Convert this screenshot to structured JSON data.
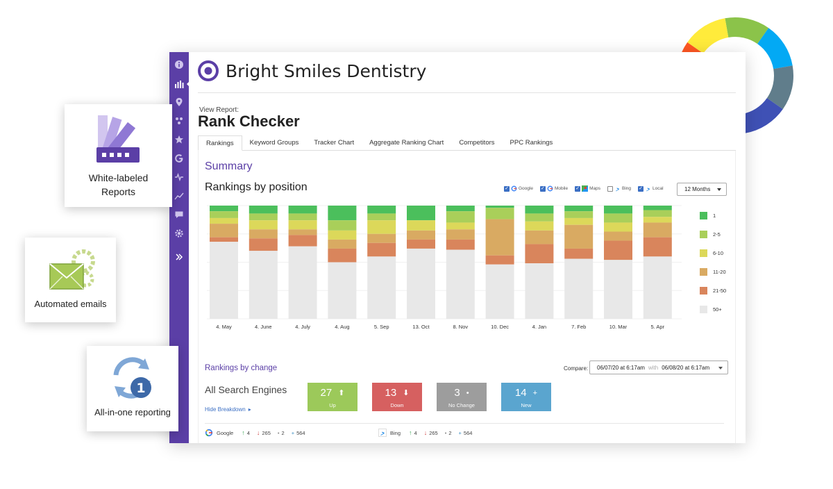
{
  "brand": {
    "name": "Bright Smiles Dentistry"
  },
  "report": {
    "view_label": "View Report:",
    "title": "Rank Checker"
  },
  "tabs": [
    {
      "label": "Rankings",
      "active": true
    },
    {
      "label": "Keyword Groups"
    },
    {
      "label": "Tracker Chart"
    },
    {
      "label": "Aggregate Ranking Chart"
    },
    {
      "label": "Competitors"
    },
    {
      "label": "PPC Rankings"
    }
  ],
  "summary": {
    "title": "Summary",
    "chart_title": "Rankings by position",
    "period": "12 Months",
    "engines": [
      {
        "label": "Google",
        "checked": true,
        "icon": "google-icon"
      },
      {
        "label": "Mobile",
        "checked": true,
        "icon": "google-icon"
      },
      {
        "label": "Maps",
        "checked": true,
        "icon": "maps-icon"
      },
      {
        "label": "Bing",
        "checked": false,
        "icon": "bing-icon"
      },
      {
        "label": "Local",
        "checked": true,
        "icon": "bing-icon"
      }
    ]
  },
  "chart_data": {
    "type": "bar",
    "stacked": true,
    "title": "Rankings by position",
    "categories": [
      "4. May",
      "4. June",
      "4. July",
      "4. Aug",
      "5. Sep",
      "13. Oct",
      "8. Nov",
      "10. Dec",
      "4. Jan",
      "7. Feb",
      "10. Mar",
      "5. Apr"
    ],
    "ylim": [
      0,
      100
    ],
    "series": [
      {
        "name": "1",
        "color": "#4bbf5c",
        "values": [
          5,
          7,
          7,
          13,
          7,
          13,
          5,
          2,
          7,
          5,
          7,
          4
        ]
      },
      {
        "name": "2-5",
        "color": "#a9cf5a",
        "values": [
          6,
          6,
          6,
          9,
          6,
          0,
          10,
          10,
          7,
          6,
          8,
          6
        ]
      },
      {
        "name": "6-10",
        "color": "#dcd85a",
        "values": [
          5,
          8,
          8,
          8,
          12,
          9,
          6,
          0,
          8,
          6,
          8,
          5
        ]
      },
      {
        "name": "11-20",
        "color": "#d9aa62",
        "values": [
          12,
          8,
          5,
          8,
          8,
          8,
          9,
          32,
          12,
          21,
          8,
          13
        ]
      },
      {
        "name": "21-50",
        "color": "#d9855c",
        "values": [
          4,
          11,
          10,
          12,
          12,
          8,
          9,
          8,
          17,
          9,
          17,
          17
        ]
      },
      {
        "name": "50+",
        "color": "#e8e8e8",
        "values": [
          68,
          60,
          64,
          50,
          55,
          62,
          61,
          48,
          49,
          53,
          52,
          55
        ]
      }
    ]
  },
  "change": {
    "title": "Rankings by change",
    "compare_label": "Compare:",
    "date_from": "06/07/20 at 6:17am",
    "with_label": "with",
    "date_to": "06/08/20 at 6:17am",
    "all_engines_label": "All Search Engines",
    "hide_breakdown": "Hide Breakdown",
    "boxes": [
      {
        "value": "27",
        "symbol": "⬆",
        "label": "Up",
        "color": "#9cc95a"
      },
      {
        "value": "13",
        "symbol": "⬇",
        "label": "Down",
        "color": "#d66060"
      },
      {
        "value": "3",
        "symbol": "•",
        "label": "No Change",
        "color": "#9d9d9d"
      },
      {
        "value": "14",
        "symbol": "+",
        "label": "New",
        "color": "#5aa5cf"
      }
    ],
    "breakdown": [
      {
        "engine": "Google",
        "up": "4",
        "down": "265",
        "same": "2",
        "new": "564"
      },
      {
        "engine": "Bing",
        "up": "4",
        "down": "265",
        "same": "2",
        "new": "564"
      }
    ]
  },
  "features": [
    {
      "label_line1": "White-labeled",
      "label_line2": "Reports"
    },
    {
      "label_line1": "Automated emails",
      "label_line2": ""
    },
    {
      "label_line1": "All-in-one reporting",
      "label_line2": ""
    }
  ],
  "colors": {
    "sidebar": "#5b3fa6",
    "accent": "#5b3fa6",
    "link": "#3b6fc4",
    "ring": [
      "#8bc34a",
      "#03a9f4",
      "#607d8b",
      "#3f51b5",
      "#9c27b0",
      "#e91e63",
      "#ff5722",
      "#ffeb3b"
    ]
  }
}
